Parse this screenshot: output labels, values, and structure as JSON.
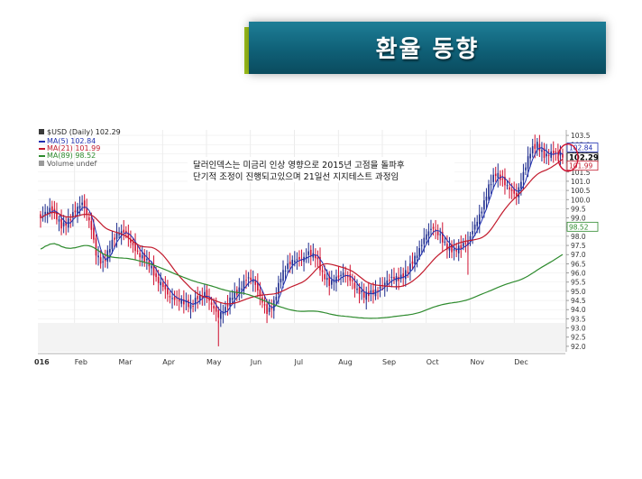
{
  "slide": {
    "title": "환율 동향",
    "banner_color": "#0f6077",
    "accent_color": "#9ec21b"
  },
  "chart_data": {
    "type": "candlestick",
    "title": "$USD (Daily) 102.29",
    "legend": [
      {
        "name": "MA(5) 102.84",
        "color": "#1f2fb0"
      },
      {
        "name": "MA(21) 101.99",
        "color": "#c21a2c"
      },
      {
        "name": "MA(89) 98.52",
        "color": "#2e8b2e"
      },
      {
        "name": "Volume undef",
        "color": "#7a7a7a"
      }
    ],
    "annotation": [
      "달러인덱스는 미금리 인상 영향으로 2015년 고점을 돌파후",
      "단기적 조정이 진행되고있으며 21일선 지지테스트 과정임"
    ],
    "x_labels": [
      "016",
      "Feb",
      "Mar",
      "Apr",
      "May",
      "Jun",
      "Jul",
      "Aug",
      "Sep",
      "Oct",
      "Nov",
      "Dec"
    ],
    "y_ticks": [
      "103.5",
      "103.0",
      "102.5",
      "102.0",
      "101.5",
      "101.0",
      "100.5",
      "100.0",
      "99.5",
      "99.0",
      "98.5",
      "98.0",
      "97.5",
      "97.0",
      "96.5",
      "96.0",
      "95.5",
      "95.0",
      "94.5",
      "94.0",
      "93.5",
      "93.0",
      "92.5",
      "92.0"
    ],
    "ylim": [
      91.7,
      103.8
    ],
    "price_tags": [
      {
        "label": "102.84",
        "value": 102.84,
        "color": "#1f2fb0"
      },
      {
        "label": "102.29",
        "value": 102.29,
        "color": "#000000"
      },
      {
        "label": "101.99",
        "value": 101.99,
        "color": "#c21a2c"
      },
      {
        "label": "98.52",
        "value": 98.52,
        "color": "#2e8b2e"
      }
    ],
    "up_color": "#1c2a8c",
    "down_color": "#d01030",
    "close_anchors": [
      [
        0,
        99.0
      ],
      [
        5,
        99.3
      ],
      [
        9,
        98.7
      ],
      [
        14,
        99.3
      ],
      [
        18,
        99.6
      ],
      [
        22,
        98.4
      ],
      [
        24,
        97.2
      ],
      [
        27,
        96.7
      ],
      [
        30,
        97.4
      ],
      [
        33,
        97.9
      ],
      [
        37,
        98.2
      ],
      [
        41,
        97.5
      ],
      [
        44,
        96.9
      ],
      [
        47,
        96.3
      ],
      [
        50,
        95.5
      ],
      [
        53,
        95.4
      ],
      [
        56,
        94.9
      ],
      [
        59,
        94.6
      ],
      [
        62,
        94.2
      ],
      [
        65,
        94.0
      ],
      [
        68,
        94.8
      ],
      [
        71,
        95.1
      ],
      [
        74,
        94.3
      ],
      [
        77,
        93.4
      ],
      [
        80,
        93.9
      ],
      [
        83,
        94.9
      ],
      [
        86,
        95.3
      ],
      [
        89,
        95.7
      ],
      [
        92,
        95.4
      ],
      [
        95,
        94.6
      ],
      [
        98,
        94.0
      ],
      [
        101,
        94.6
      ],
      [
        104,
        95.8
      ],
      [
        107,
        96.2
      ],
      [
        110,
        96.6
      ],
      [
        113,
        96.9
      ],
      [
        116,
        97.3
      ],
      [
        119,
        96.9
      ],
      [
        122,
        95.7
      ],
      [
        125,
        95.3
      ],
      [
        128,
        95.9
      ],
      [
        131,
        96.2
      ],
      [
        134,
        95.6
      ],
      [
        137,
        94.8
      ],
      [
        140,
        94.7
      ],
      [
        143,
        95.1
      ],
      [
        146,
        95.3
      ],
      [
        149,
        95.4
      ],
      [
        152,
        95.5
      ],
      [
        155,
        95.6
      ],
      [
        158,
        96.2
      ],
      [
        161,
        96.8
      ],
      [
        164,
        97.2
      ],
      [
        167,
        97.9
      ],
      [
        170,
        98.4
      ],
      [
        173,
        98.2
      ],
      [
        176,
        97.6
      ],
      [
        179,
        97.1
      ],
      [
        182,
        97.2
      ],
      [
        185,
        97.7
      ],
      [
        188,
        98.8
      ],
      [
        191,
        99.6
      ],
      [
        194,
        100.6
      ],
      [
        197,
        101.2
      ],
      [
        200,
        101.0
      ],
      [
        203,
        100.8
      ],
      [
        206,
        100.4
      ],
      [
        209,
        101.3
      ],
      [
        212,
        102.4
      ],
      [
        215,
        103.0
      ],
      [
        218,
        102.6
      ],
      [
        221,
        102.7
      ],
      [
        224,
        102.4
      ],
      [
        226,
        102.29
      ]
    ],
    "moving_averages": [
      {
        "name": "MA(5)",
        "period": 5,
        "color": "#1f2fb0"
      },
      {
        "name": "MA(21)",
        "period": 21,
        "color": "#c21a2c"
      },
      {
        "name": "MA(89)",
        "period": 89,
        "color": "#2e8b2e",
        "offset": 1.7
      }
    ]
  }
}
